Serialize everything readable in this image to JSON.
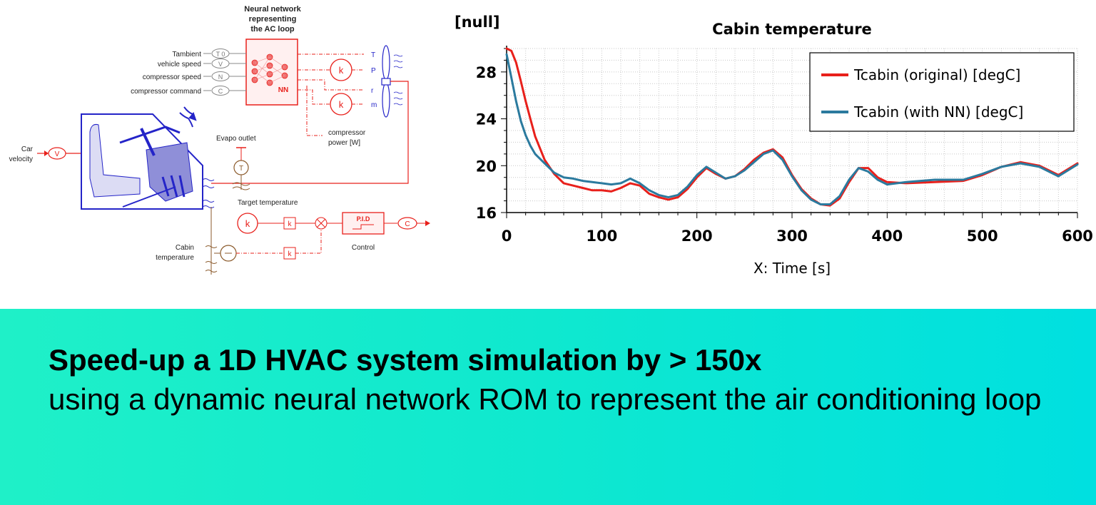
{
  "diagram": {
    "nn_title": [
      "Neural network",
      "representing",
      "the AC loop"
    ],
    "nn_badge": "NN",
    "inputs": [
      {
        "label": "Tambient",
        "symbol": "T 0"
      },
      {
        "label": "vehicle speed",
        "symbol": "V"
      },
      {
        "label": "compressor speed",
        "symbol": "N"
      },
      {
        "label": "compressor command",
        "symbol": "C"
      }
    ],
    "outputs": [
      "T",
      "P",
      "r",
      "m"
    ],
    "gain_symbol": "k",
    "compressor_power": [
      "compressor",
      "power [W]"
    ],
    "car_velocity": [
      "Car",
      "velocity"
    ],
    "car_velocity_symbol": "V",
    "evapo_outlet": "Evapo outlet",
    "evapo_symbol": "T",
    "target_temperature": "Target temperature",
    "pid_label": "P.I.D",
    "control_label": "Control",
    "control_out_symbol": "C",
    "cabin_temperature": [
      "Cabin",
      "temperature"
    ],
    "colors": {
      "red": "#e8201b",
      "blue": "#2424c8",
      "brown": "#8b5a2b"
    }
  },
  "chart_data": {
    "type": "line",
    "title": "Cabin temperature",
    "ylabel": "[null]",
    "xlabel": "X: Time [s]",
    "xlim": [
      0,
      600
    ],
    "ylim": [
      16,
      30
    ],
    "xticks": [
      "0",
      "100",
      "200",
      "300",
      "400",
      "500",
      "600"
    ],
    "yticks": [
      "16",
      "20",
      "24",
      "28"
    ],
    "grid": true,
    "legend_position": "top-right",
    "series": [
      {
        "name": "Tcabin (original) [degC]",
        "color": "#e8201b",
        "x": [
          0,
          5,
          10,
          15,
          20,
          25,
          30,
          40,
          50,
          60,
          70,
          80,
          90,
          100,
          110,
          120,
          130,
          140,
          150,
          160,
          170,
          180,
          190,
          200,
          210,
          220,
          230,
          240,
          250,
          260,
          270,
          280,
          290,
          300,
          310,
          320,
          330,
          340,
          350,
          360,
          370,
          380,
          390,
          400,
          420,
          450,
          480,
          500,
          520,
          540,
          560,
          580,
          600
        ],
        "y": [
          30,
          29.8,
          28.8,
          27.2,
          25.5,
          24,
          22.5,
          20.5,
          19.3,
          18.5,
          18.3,
          18.1,
          17.9,
          17.9,
          17.8,
          18.1,
          18.5,
          18.3,
          17.6,
          17.3,
          17.1,
          17.3,
          18,
          19,
          19.8,
          19.3,
          18.9,
          19.1,
          19.7,
          20.5,
          21.1,
          21.4,
          20.7,
          19.2,
          18,
          17.2,
          16.7,
          16.6,
          17.2,
          18.6,
          19.8,
          19.8,
          19,
          18.6,
          18.5,
          18.6,
          18.7,
          19.2,
          19.9,
          20.3,
          20,
          19.2,
          20.2
        ]
      },
      {
        "name": "Tcabin (with NN) [degC]",
        "color": "#2b7a9e",
        "x": [
          0,
          5,
          10,
          15,
          20,
          25,
          30,
          40,
          50,
          60,
          70,
          80,
          90,
          100,
          110,
          120,
          130,
          140,
          150,
          160,
          170,
          180,
          190,
          200,
          210,
          220,
          230,
          240,
          250,
          260,
          270,
          280,
          290,
          300,
          310,
          320,
          330,
          340,
          350,
          360,
          370,
          380,
          390,
          400,
          420,
          450,
          480,
          500,
          520,
          540,
          560,
          580,
          600
        ],
        "y": [
          29.5,
          27.5,
          25.5,
          23.8,
          22.6,
          21.7,
          21,
          20.2,
          19.4,
          19,
          18.9,
          18.7,
          18.6,
          18.5,
          18.4,
          18.5,
          18.9,
          18.5,
          17.9,
          17.5,
          17.3,
          17.5,
          18.2,
          19.2,
          19.9,
          19.4,
          18.9,
          19.1,
          19.6,
          20.3,
          21,
          21.3,
          20.5,
          19.1,
          17.9,
          17.1,
          16.7,
          16.7,
          17.4,
          18.8,
          19.8,
          19.5,
          18.8,
          18.4,
          18.6,
          18.8,
          18.8,
          19.3,
          19.9,
          20.2,
          19.9,
          19.1,
          20.1
        ]
      }
    ]
  },
  "banner": {
    "bold": "Speed-up a 1D HVAC system simulation by > 150x",
    "rest": "using a dynamic neural network ROM to represent the air conditioning loop",
    "colors": {
      "gradient_start": "#1ff0c8",
      "gradient_end": "#00e0e0"
    }
  }
}
